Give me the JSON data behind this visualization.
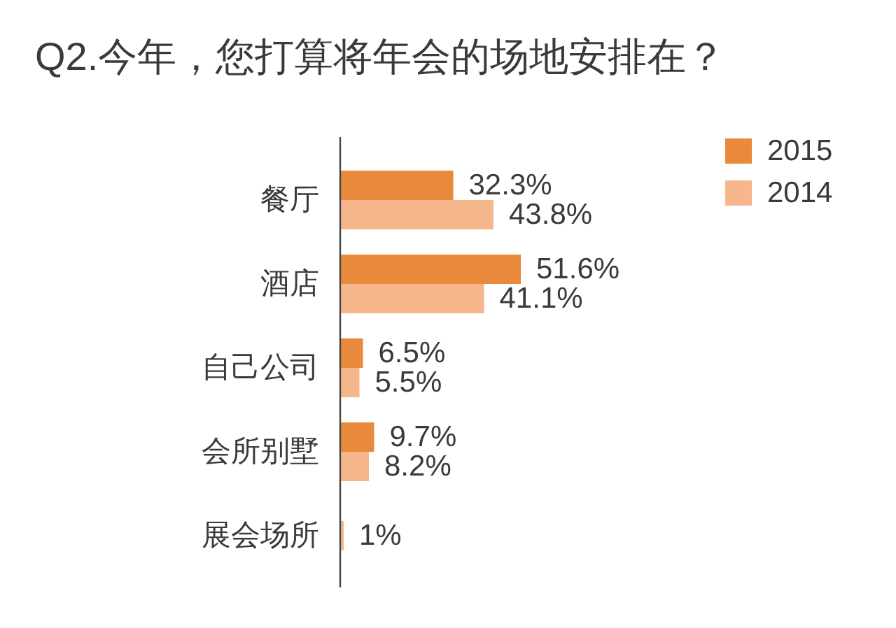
{
  "chart_data": {
    "type": "bar",
    "orientation": "horizontal",
    "title": "Q2.今年，您打算将年会的场地安排在？",
    "categories": [
      "餐厅",
      "酒店",
      "自己公司",
      "会所别墅",
      "展会场所"
    ],
    "series": [
      {
        "name": "2015",
        "color": "#e8893b",
        "values": [
          32.3,
          51.6,
          6.5,
          9.7,
          null
        ],
        "value_labels": [
          "32.3%",
          "51.6%",
          "6.5%",
          "9.7%",
          null
        ]
      },
      {
        "name": "2014",
        "color": "#f5b68c",
        "values": [
          43.8,
          41.1,
          5.5,
          8.2,
          1
        ],
        "value_labels": [
          "43.8%",
          "41.1%",
          "5.5%",
          "8.2%",
          "1%"
        ]
      }
    ],
    "tick_labels": "y",
    "legend": "top right"
  }
}
